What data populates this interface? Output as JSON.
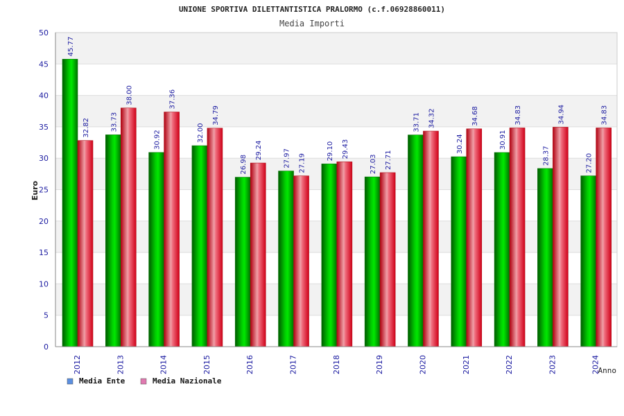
{
  "chart_data": {
    "type": "bar",
    "title": "UNIONE SPORTIVA DILETTANTISTICA PRALORMO (c.f.06928860011)",
    "subtitle": "Media Importi",
    "xlabel": "Anno",
    "ylabel": "Euro",
    "ylim": [
      0,
      50
    ],
    "yticks": [
      0,
      5,
      10,
      15,
      20,
      25,
      30,
      35,
      40,
      45,
      50
    ],
    "categories": [
      "2012",
      "2013",
      "2014",
      "2015",
      "2016",
      "2017",
      "2018",
      "2019",
      "2020",
      "2021",
      "2022",
      "2023",
      "2024"
    ],
    "series": [
      {
        "name": "Media Ente",
        "color": "#00b400",
        "legend_color": "#5b8fe0",
        "values": [
          45.77,
          33.73,
          30.92,
          32.0,
          26.98,
          27.97,
          29.1,
          27.03,
          33.71,
          30.24,
          30.91,
          28.37,
          27.2
        ]
      },
      {
        "name": "Media Nazionale",
        "color": "#e8202a",
        "legend_color": "#e07ab0",
        "values": [
          32.82,
          38.0,
          37.36,
          34.79,
          29.24,
          27.19,
          29.43,
          27.71,
          34.32,
          34.68,
          34.83,
          34.94,
          34.83
        ]
      }
    ],
    "grid": true,
    "legend_position": "bottom-left"
  }
}
